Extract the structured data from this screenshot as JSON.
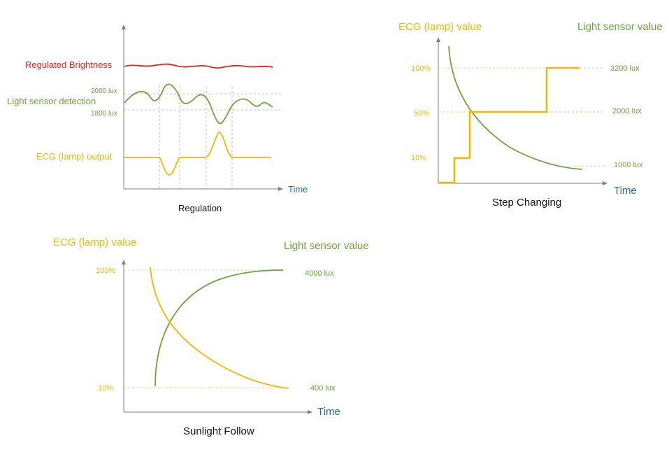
{
  "regulation": {
    "caption": "Regulation",
    "time_label": "Time",
    "regulated_brightness_label": "Regulated Brightness",
    "light_sensor_detection_label": "Light sensor detection",
    "ecg_output_label": "ECG (lamp) output",
    "upper_lux_label": "2000 lux",
    "lower_lux_label": "1800 lux"
  },
  "step_changing": {
    "caption": "Step Changing",
    "time_label": "Time",
    "ecg_value_label": "ECG (lamp) value",
    "light_sensor_value_label": "Light sensor value",
    "pct_100": "100%",
    "pct_50": "50%",
    "pct_10": "10%",
    "lux_3200": "3200 lux",
    "lux_2000": "2000 lux",
    "lux_1000": "1000 lux"
  },
  "sunlight_follow": {
    "caption": "Sunlight Follow",
    "time_label": "Time",
    "ecg_value_label": "ECG (lamp) value",
    "light_sensor_value_label": "Light sensor value",
    "pct_100": "100%",
    "pct_10": "10%",
    "lux_4000": "4000 lux",
    "lux_400": "400 lux"
  },
  "colors": {
    "brightness": "#e8201c",
    "light_sensor": "#6aa63a",
    "ecg": "#f2b800",
    "time_axis_label": "#1f6fb5",
    "axis": "#7f7f7f"
  }
}
